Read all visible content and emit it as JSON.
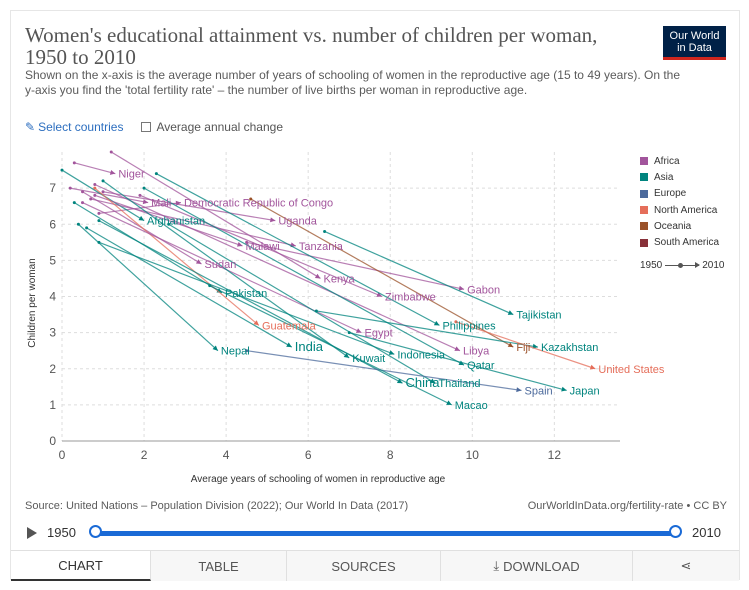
{
  "header": {
    "title": "Women's educational attainment vs. number of children per woman, 1950 to 2010",
    "subtitle": "Shown on the x-axis is the average number of years of schooling of women in the reproductive age (15 to 49 years). On the y-axis you find the 'total fertility rate' – the number of live births per woman in reproductive age.",
    "logo_line1": "Our World",
    "logo_line2": "in Data"
  },
  "controls": {
    "select_countries": "Select countries",
    "average_annual_change": "Average annual change"
  },
  "chart_data": {
    "type": "scatter",
    "xlabel": "Average years of schooling of women in reproductive age",
    "ylabel": "Children per woman",
    "xlim": [
      0,
      13.6
    ],
    "ylim": [
      0,
      8
    ],
    "x_ticks": [
      0,
      2,
      4,
      6,
      8,
      10,
      12
    ],
    "y_ticks": [
      0,
      1,
      2,
      3,
      4,
      5,
      6,
      7
    ],
    "grid": true,
    "legend_position": "right",
    "legend": [
      {
        "name": "Africa",
        "color": "#a2559c"
      },
      {
        "name": "Asia",
        "color": "#00847e"
      },
      {
        "name": "Europe",
        "color": "#4c6a9c"
      },
      {
        "name": "North America",
        "color": "#e56e5a"
      },
      {
        "name": "Oceania",
        "color": "#9a5129"
      },
      {
        "name": "South America",
        "color": "#883039"
      }
    ],
    "time_legend": {
      "start": "1950",
      "end": "2010"
    },
    "series": [
      {
        "name": "Niger",
        "region": "Africa",
        "x": [
          0.3,
          1.3
        ],
        "y": [
          7.7,
          7.4
        ]
      },
      {
        "name": "Mali",
        "region": "Africa",
        "x": [
          0.2,
          2.1
        ],
        "y": [
          7.0,
          6.6
        ]
      },
      {
        "name": "Democratic Republic of Congo",
        "region": "Africa",
        "x": [
          0.9,
          2.9
        ],
        "y": [
          6.3,
          6.6
        ]
      },
      {
        "name": "Uganda",
        "region": "Africa",
        "x": [
          1.0,
          5.2
        ],
        "y": [
          6.9,
          6.1
        ]
      },
      {
        "name": "Afghanistan",
        "region": "Asia",
        "x": [
          0.0,
          2.0
        ],
        "y": [
          7.5,
          6.1
        ]
      },
      {
        "name": "Malawi",
        "region": "Africa",
        "x": [
          0.8,
          4.4
        ],
        "y": [
          6.8,
          5.4
        ]
      },
      {
        "name": "Tanzania",
        "region": "Africa",
        "x": [
          0.7,
          5.7
        ],
        "y": [
          6.7,
          5.4
        ]
      },
      {
        "name": "Sudan",
        "region": "Africa",
        "x": [
          0.5,
          3.4
        ],
        "y": [
          6.9,
          4.9
        ]
      },
      {
        "name": "Kenya",
        "region": "Africa",
        "x": [
          1.2,
          6.3
        ],
        "y": [
          8.0,
          4.5
        ]
      },
      {
        "name": "Pakistan",
        "region": "Asia",
        "x": [
          0.3,
          3.9
        ],
        "y": [
          6.6,
          4.1
        ]
      },
      {
        "name": "Gabon",
        "region": "Africa",
        "x": [
          4.5,
          9.8
        ],
        "y": [
          5.5,
          4.2
        ]
      },
      {
        "name": "Zimbabwe",
        "region": "Africa",
        "x": [
          1.9,
          7.8
        ],
        "y": [
          6.8,
          4.0
        ]
      },
      {
        "name": "Tajikistan",
        "region": "Asia",
        "x": [
          6.4,
          11.0
        ],
        "y": [
          5.8,
          3.5
        ]
      },
      {
        "name": "Guatemala",
        "region": "North America",
        "x": [
          0.8,
          4.8
        ],
        "y": [
          7.0,
          3.2
        ]
      },
      {
        "name": "Egypt",
        "region": "Africa",
        "x": [
          0.5,
          7.3
        ],
        "y": [
          6.6,
          3.0
        ]
      },
      {
        "name": "Philippines",
        "region": "Asia",
        "x": [
          2.3,
          9.2
        ],
        "y": [
          7.4,
          3.2
        ]
      },
      {
        "name": "Fiji",
        "region": "Oceania",
        "x": [
          4.6,
          11.0
        ],
        "y": [
          6.7,
          2.6
        ]
      },
      {
        "name": "Libya",
        "region": "Africa",
        "x": [
          0.8,
          9.7
        ],
        "y": [
          7.1,
          2.5
        ]
      },
      {
        "name": "Kazakhstan",
        "region": "Asia",
        "x": [
          6.2,
          11.6
        ],
        "y": [
          3.6,
          2.6
        ]
      },
      {
        "name": "Nepal",
        "region": "Asia",
        "x": [
          0.4,
          3.8
        ],
        "y": [
          6.0,
          2.5
        ]
      },
      {
        "name": "India",
        "region": "Asia",
        "x": [
          0.6,
          5.6
        ],
        "y": [
          5.9,
          2.6
        ]
      },
      {
        "name": "Indonesia",
        "region": "Asia",
        "x": [
          0.9,
          8.1
        ],
        "y": [
          5.5,
          2.4
        ]
      },
      {
        "name": "Kuwait",
        "region": "Asia",
        "x": [
          1.0,
          7.0
        ],
        "y": [
          7.2,
          2.3
        ]
      },
      {
        "name": "Qatar",
        "region": "Asia",
        "x": [
          2.0,
          9.8
        ],
        "y": [
          7.0,
          2.1
        ]
      },
      {
        "name": "United States",
        "region": "North America",
        "x": [
          9.6,
          13.0
        ],
        "y": [
          3.3,
          2.0
        ]
      },
      {
        "name": "China",
        "region": "Asia",
        "x": [
          0.9,
          8.3
        ],
        "y": [
          6.1,
          1.6
        ]
      },
      {
        "name": "Thailand",
        "region": "Asia",
        "x": [
          2.6,
          9.1
        ],
        "y": [
          6.0,
          1.6
        ]
      },
      {
        "name": "Spain",
        "region": "Europe",
        "x": [
          4.5,
          11.2
        ],
        "y": [
          2.5,
          1.4
        ]
      },
      {
        "name": "Japan",
        "region": "Asia",
        "x": [
          7.0,
          12.3
        ],
        "y": [
          3.0,
          1.4
        ]
      },
      {
        "name": "Macao",
        "region": "Asia",
        "x": [
          3.6,
          9.5
        ],
        "y": [
          4.3,
          1.0
        ]
      }
    ]
  },
  "footer": {
    "source": "Source: United Nations – Population Division (2022); Our World In Data (2017)",
    "url": "OurWorldInData.org/fertility-rate • CC BY"
  },
  "timeline": {
    "start_year": "1950",
    "end_year": "2010",
    "start_fraction": 0,
    "end_fraction": 1
  },
  "tabs": [
    {
      "label": "CHART",
      "active": true
    },
    {
      "label": "TABLE",
      "active": false
    },
    {
      "label": "SOURCES",
      "active": false
    },
    {
      "label": "DOWNLOAD",
      "active": false
    },
    {
      "label": "",
      "active": false
    }
  ]
}
